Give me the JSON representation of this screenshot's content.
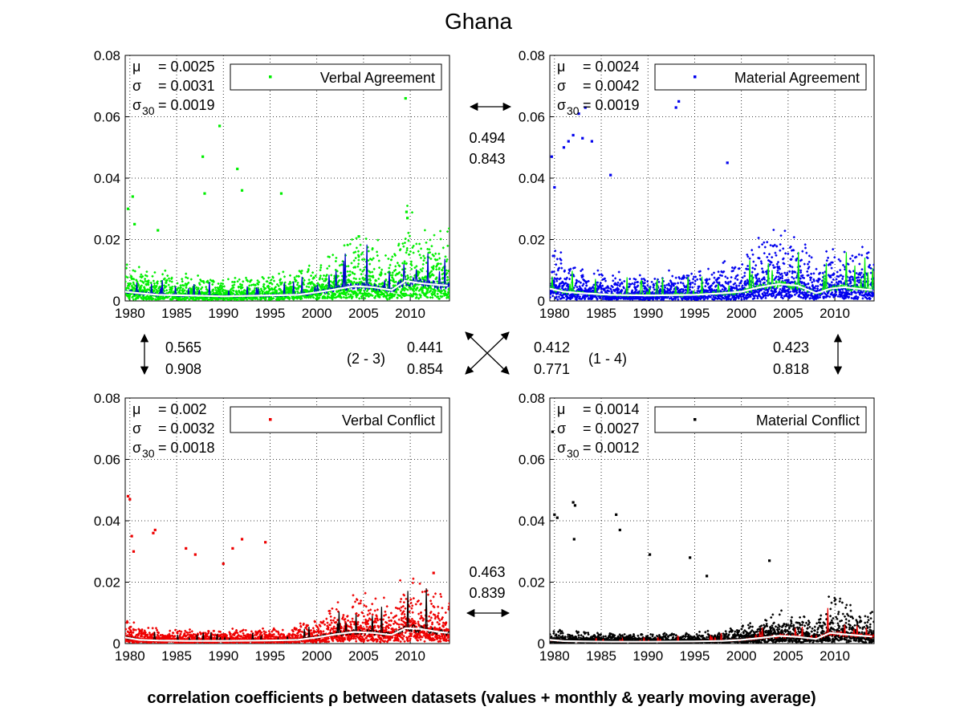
{
  "figure": {
    "title": "Ghana",
    "caption": "correlation coefficients ρ between datasets (values + monthly & yearly moving average)"
  },
  "correlations": {
    "top": {
      "values": [
        "0.494",
        "0.843"
      ]
    },
    "bottom": {
      "values": [
        "0.463",
        "0.839"
      ]
    },
    "left": {
      "values": [
        "0.565",
        "0.908"
      ]
    },
    "right": {
      "values": [
        "0.423",
        "0.818"
      ]
    },
    "diag_2_3": {
      "label": "(2 - 3)",
      "values": [
        "0.441",
        "0.854"
      ]
    },
    "diag_1_4": {
      "label": "(1 - 4)",
      "values": [
        "0.412",
        "0.771"
      ]
    }
  },
  "chart_data": [
    {
      "type": "scatter",
      "title": "",
      "legend": "Verbal Agreement",
      "legend_position": "top-right",
      "stats": {
        "mu": "= 0.0025",
        "sigma": "= 0.0031",
        "sigma30": "= 0.0019"
      },
      "color": "#00ee00",
      "ma_color": "#0000cc",
      "xlim": [
        1979.5,
        2014.2
      ],
      "ylim": [
        0,
        0.08
      ],
      "xticks": [
        "1980",
        "1985",
        "1990",
        "1995",
        "2000",
        "2005",
        "2010"
      ],
      "yticks": [
        "0",
        "0.02",
        "0.04",
        "0.06",
        "0.08"
      ],
      "grid": true,
      "moving_average": [
        [
          1979.5,
          0.003
        ],
        [
          1981,
          0.0025
        ],
        [
          1983,
          0.002
        ],
        [
          1986,
          0.0018
        ],
        [
          1990,
          0.0015
        ],
        [
          1995,
          0.0018
        ],
        [
          1998,
          0.002
        ],
        [
          2000,
          0.0028
        ],
        [
          2002,
          0.0038
        ],
        [
          2004,
          0.0048
        ],
        [
          2006,
          0.0045
        ],
        [
          2008,
          0.0035
        ],
        [
          2009.5,
          0.0065
        ],
        [
          2011,
          0.0058
        ],
        [
          2013,
          0.0052
        ],
        [
          2014,
          0.005
        ]
      ],
      "outliers": [
        [
          1979.8,
          0.03
        ],
        [
          1980.3,
          0.034
        ],
        [
          1980.5,
          0.025
        ],
        [
          1983,
          0.023
        ],
        [
          1987.8,
          0.047
        ],
        [
          1988,
          0.035
        ],
        [
          1989.6,
          0.057
        ],
        [
          1991.5,
          0.043
        ],
        [
          1992,
          0.036
        ],
        [
          1996.2,
          0.035
        ],
        [
          2004.5,
          0.021
        ],
        [
          2009.5,
          0.066
        ],
        [
          2009.6,
          0.029
        ],
        [
          2009.7,
          0.027
        ]
      ]
    },
    {
      "type": "scatter",
      "title": "",
      "legend": "Material Agreement",
      "legend_position": "top-right",
      "stats": {
        "mu": "= 0.0024",
        "sigma": "= 0.0042",
        "sigma30": "= 0.0019"
      },
      "color": "#0000ee",
      "ma_color": "#00ee00",
      "xlim": [
        1979.5,
        2014.2
      ],
      "ylim": [
        0,
        0.08
      ],
      "xticks": [
        "1980",
        "1985",
        "1990",
        "1995",
        "2000",
        "2005",
        "2010"
      ],
      "yticks": [
        "0",
        "0.02",
        "0.04",
        "0.06",
        "0.08"
      ],
      "grid": true,
      "moving_average": [
        [
          1979.5,
          0.004
        ],
        [
          1981,
          0.003
        ],
        [
          1983,
          0.0025
        ],
        [
          1986,
          0.002
        ],
        [
          1990,
          0.0018
        ],
        [
          1995,
          0.002
        ],
        [
          1998,
          0.0025
        ],
        [
          2000,
          0.003
        ],
        [
          2002,
          0.0045
        ],
        [
          2004,
          0.0055
        ],
        [
          2006,
          0.005
        ],
        [
          2008,
          0.0025
        ],
        [
          2009.5,
          0.004
        ],
        [
          2011,
          0.0045
        ],
        [
          2013,
          0.0038
        ],
        [
          2014,
          0.0035
        ]
      ],
      "outliers": [
        [
          1979.7,
          0.047
        ],
        [
          1980,
          0.037
        ],
        [
          1981,
          0.05
        ],
        [
          1981.5,
          0.052
        ],
        [
          1982,
          0.054
        ],
        [
          1982.6,
          0.061
        ],
        [
          1983,
          0.053
        ],
        [
          1983.3,
          0.063
        ],
        [
          1984,
          0.052
        ],
        [
          1986,
          0.041
        ],
        [
          1993,
          0.063
        ],
        [
          1993.3,
          0.065
        ],
        [
          1998.5,
          0.045
        ]
      ]
    },
    {
      "type": "scatter",
      "title": "",
      "legend": "Verbal Conflict",
      "legend_position": "top-right",
      "stats": {
        "mu": "= 0.002",
        "sigma": "= 0.0032",
        "sigma30": "= 0.0018"
      },
      "color": "#ee0000",
      "ma_color": "#000000",
      "xlim": [
        1979.5,
        2014.2
      ],
      "ylim": [
        0,
        0.08
      ],
      "xticks": [
        "1980",
        "1985",
        "1990",
        "1995",
        "2000",
        "2005",
        "2010"
      ],
      "yticks": [
        "0",
        "0.02",
        "0.04",
        "0.06",
        "0.08"
      ],
      "grid": true,
      "moving_average": [
        [
          1979.5,
          0.002
        ],
        [
          1981,
          0.0012
        ],
        [
          1983,
          0.001
        ],
        [
          1986,
          0.0009
        ],
        [
          1990,
          0.0009
        ],
        [
          1995,
          0.001
        ],
        [
          1998,
          0.0012
        ],
        [
          2000,
          0.002
        ],
        [
          2002,
          0.003
        ],
        [
          2004,
          0.0038
        ],
        [
          2006,
          0.0035
        ],
        [
          2008,
          0.0028
        ],
        [
          2009.5,
          0.005
        ],
        [
          2011,
          0.0048
        ],
        [
          2013,
          0.0038
        ],
        [
          2014,
          0.0035
        ]
      ],
      "outliers": [
        [
          1979.8,
          0.048
        ],
        [
          1980,
          0.047
        ],
        [
          1980.2,
          0.035
        ],
        [
          1980.4,
          0.03
        ],
        [
          1982.5,
          0.036
        ],
        [
          1982.7,
          0.037
        ],
        [
          1986,
          0.031
        ],
        [
          1987,
          0.029
        ],
        [
          1990,
          0.026
        ],
        [
          1991,
          0.031
        ],
        [
          1992,
          0.034
        ],
        [
          1994.5,
          0.033
        ],
        [
          2012.5,
          0.023
        ]
      ]
    },
    {
      "type": "scatter",
      "title": "",
      "legend": "Material Conflict",
      "legend_position": "top-right",
      "stats": {
        "mu": "= 0.0014",
        "sigma": "= 0.0027",
        "sigma30": "= 0.0012"
      },
      "color": "#000000",
      "ma_color": "#ee0000",
      "xlim": [
        1979.5,
        2014.2
      ],
      "ylim": [
        0,
        0.08
      ],
      "xticks": [
        "1980",
        "1985",
        "1990",
        "1995",
        "2000",
        "2005",
        "2010"
      ],
      "yticks": [
        "0",
        "0.02",
        "0.04",
        "0.06",
        "0.08"
      ],
      "grid": true,
      "moving_average": [
        [
          1979.5,
          0.0012
        ],
        [
          1981,
          0.0008
        ],
        [
          1983,
          0.0007
        ],
        [
          1986,
          0.0006
        ],
        [
          1990,
          0.0006
        ],
        [
          1995,
          0.0007
        ],
        [
          1998,
          0.0009
        ],
        [
          2000,
          0.0012
        ],
        [
          2002,
          0.0018
        ],
        [
          2004,
          0.0025
        ],
        [
          2006,
          0.0022
        ],
        [
          2008,
          0.0015
        ],
        [
          2009.5,
          0.0035
        ],
        [
          2011,
          0.003
        ],
        [
          2013,
          0.0025
        ],
        [
          2014,
          0.0023
        ]
      ],
      "outliers": [
        [
          1979.8,
          0.069
        ],
        [
          1980,
          0.042
        ],
        [
          1980.3,
          0.041
        ],
        [
          1982,
          0.046
        ],
        [
          1982.2,
          0.045
        ],
        [
          1982.1,
          0.034
        ],
        [
          1986.6,
          0.042
        ],
        [
          1987,
          0.037
        ],
        [
          1990.2,
          0.029
        ],
        [
          1994.5,
          0.028
        ],
        [
          1996.3,
          0.022
        ],
        [
          2003,
          0.027
        ]
      ]
    }
  ]
}
